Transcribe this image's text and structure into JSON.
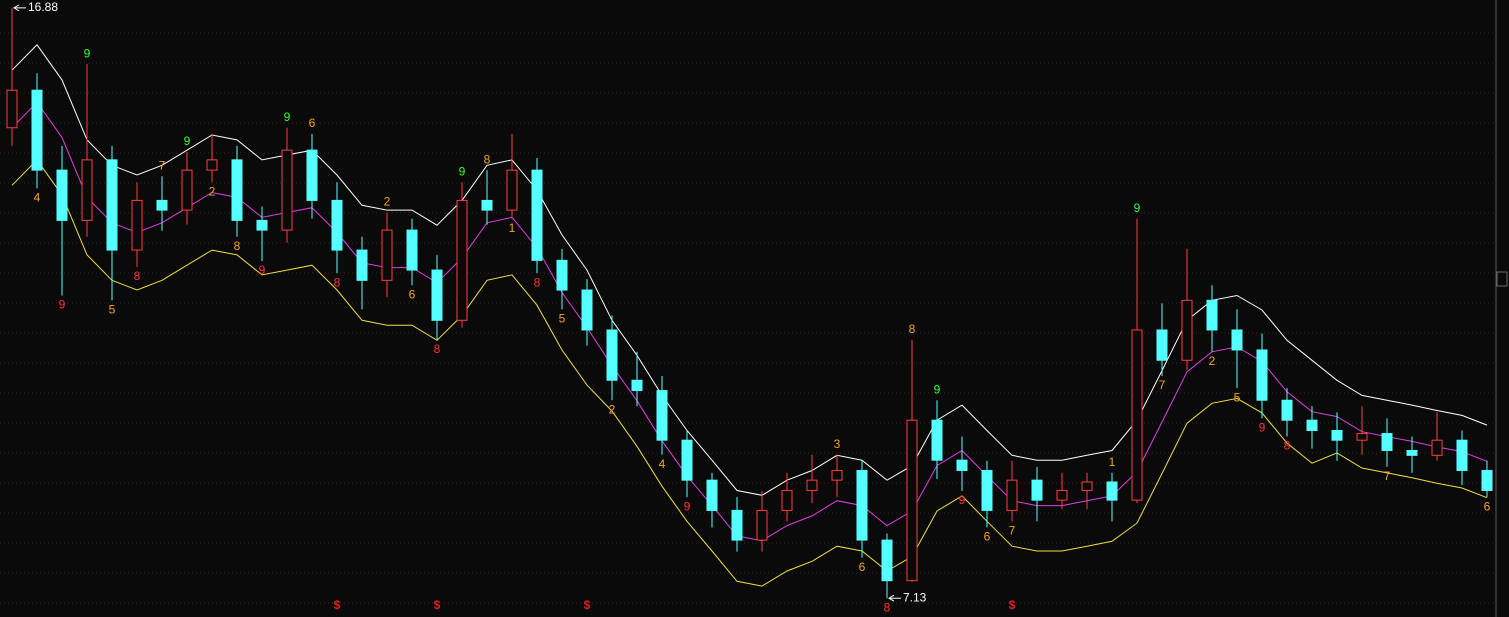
{
  "chart_data": {
    "type": "candlestick",
    "ylim": [
      6.82,
      17.01
    ],
    "up_color": "#ff3c3c",
    "down_color": "#54ffff",
    "open": [
      14.9,
      15.52,
      14.2,
      13.37,
      14.37,
      12.88,
      13.7,
      13.54,
      14.2,
      14.37,
      13.37,
      13.21,
      14.53,
      13.7,
      12.88,
      12.38,
      13.21,
      12.55,
      11.72,
      13.7,
      13.54,
      14.2,
      12.71,
      12.22,
      11.56,
      10.73,
      10.56,
      9.74,
      9.08,
      8.58,
      8.09,
      8.58,
      8.91,
      9.08,
      9.24,
      8.09,
      7.42,
      10.07,
      9.41,
      9.24,
      8.58,
      9.08,
      8.75,
      8.91,
      9.05,
      8.75,
      11.56,
      11.06,
      12.05,
      11.56,
      11.23,
      10.4,
      10.07,
      9.9,
      9.74,
      9.85,
      9.57,
      9.49,
      9.74,
      9.24
    ],
    "close": [
      15.52,
      14.2,
      13.37,
      14.37,
      12.88,
      13.7,
      13.54,
      14.2,
      14.37,
      13.37,
      13.21,
      14.53,
      13.7,
      12.88,
      12.38,
      13.21,
      12.55,
      11.72,
      13.7,
      13.54,
      14.2,
      12.71,
      12.22,
      11.56,
      10.73,
      10.56,
      9.74,
      9.08,
      8.58,
      8.09,
      8.58,
      8.91,
      9.08,
      9.24,
      8.09,
      7.42,
      10.07,
      9.41,
      9.24,
      8.58,
      9.08,
      8.75,
      8.91,
      9.05,
      8.75,
      11.56,
      11.06,
      12.05,
      11.56,
      11.23,
      10.4,
      10.07,
      9.9,
      9.74,
      9.85,
      9.57,
      9.49,
      9.74,
      9.24,
      8.91
    ],
    "high": [
      16.88,
      15.8,
      14.6,
      15.95,
      14.6,
      14.0,
      14.1,
      14.5,
      14.8,
      14.6,
      13.6,
      14.9,
      14.8,
      14.0,
      13.1,
      13.5,
      13.4,
      12.8,
      14.0,
      14.2,
      14.8,
      14.4,
      12.9,
      12.4,
      11.8,
      11.2,
      10.8,
      9.9,
      9.2,
      8.8,
      8.9,
      9.2,
      9.5,
      9.5,
      9.4,
      8.2,
      11.4,
      10.4,
      9.8,
      9.4,
      9.4,
      9.3,
      9.2,
      9.2,
      9.2,
      13.4,
      12.0,
      12.9,
      12.3,
      11.9,
      11.5,
      10.6,
      10.3,
      10.2,
      10.3,
      10.1,
      9.8,
      10.2,
      9.9,
      9.4
    ],
    "low": [
      14.6,
      13.9,
      12.13,
      13.1,
      12.05,
      12.6,
      13.2,
      13.3,
      14.0,
      13.1,
      12.7,
      13.0,
      13.4,
      12.5,
      11.9,
      12.1,
      12.3,
      11.4,
      11.6,
      13.3,
      13.4,
      12.5,
      11.9,
      11.3,
      10.4,
      10.3,
      9.5,
      8.8,
      8.3,
      7.9,
      7.9,
      8.4,
      8.7,
      8.8,
      7.8,
      7.13,
      7.4,
      9.1,
      8.9,
      8.3,
      8.4,
      8.4,
      8.6,
      8.6,
      8.4,
      8.7,
      10.8,
      10.9,
      11.2,
      10.6,
      10.1,
      9.8,
      9.6,
      9.4,
      9.5,
      9.3,
      9.2,
      9.4,
      9.0,
      8.8
    ],
    "series": [
      {
        "color": "#ffffff",
        "values": [
          15.85,
          16.27,
          15.69,
          14.7,
          14.28,
          14.12,
          14.28,
          14.53,
          14.78,
          14.7,
          14.37,
          14.45,
          14.53,
          14.12,
          13.62,
          13.54,
          13.54,
          13.29,
          13.7,
          14.28,
          14.37,
          13.87,
          13.13,
          12.55,
          11.72,
          11.14,
          10.48,
          9.9,
          9.41,
          8.91,
          8.83,
          9.08,
          9.24,
          9.49,
          9.41,
          9.08,
          9.32,
          10.07,
          10.32,
          9.9,
          9.49,
          9.41,
          9.41,
          9.49,
          9.57,
          10.07,
          10.89,
          11.72,
          12.05,
          12.13,
          11.89,
          11.39,
          11.06,
          10.73,
          10.48,
          10.4,
          10.32,
          10.23,
          10.15,
          9.99
        ]
      },
      {
        "color": "#e040e0",
        "values": [
          14.9,
          15.32,
          14.74,
          13.75,
          13.33,
          13.17,
          13.33,
          13.58,
          13.83,
          13.75,
          13.42,
          13.5,
          13.58,
          13.17,
          12.67,
          12.59,
          12.59,
          12.34,
          12.75,
          13.33,
          13.42,
          12.92,
          12.18,
          11.6,
          10.97,
          10.39,
          9.73,
          9.15,
          8.66,
          8.16,
          8.08,
          8.33,
          8.49,
          8.74,
          8.66,
          8.33,
          8.57,
          9.32,
          9.57,
          9.15,
          8.74,
          8.66,
          8.66,
          8.74,
          8.82,
          9.22,
          10.04,
          10.87,
          11.2,
          11.28,
          11.04,
          10.54,
          10.21,
          10.13,
          9.88,
          9.8,
          9.72,
          9.63,
          9.55,
          9.39
        ]
      },
      {
        "color": "#f0e040",
        "values": [
          13.95,
          14.37,
          13.79,
          12.8,
          12.38,
          12.22,
          12.38,
          12.63,
          12.88,
          12.8,
          12.47,
          12.55,
          12.63,
          12.22,
          11.72,
          11.64,
          11.64,
          11.39,
          11.8,
          12.38,
          12.47,
          11.97,
          11.23,
          10.65,
          10.22,
          9.64,
          8.98,
          8.4,
          7.91,
          7.41,
          7.33,
          7.58,
          7.74,
          7.99,
          7.91,
          7.58,
          7.82,
          8.57,
          8.82,
          8.4,
          7.99,
          7.91,
          7.91,
          7.99,
          8.07,
          8.37,
          9.19,
          10.02,
          10.35,
          10.43,
          10.19,
          9.69,
          9.36,
          9.53,
          9.28,
          9.2,
          9.12,
          9.03,
          8.95,
          8.79
        ]
      }
    ],
    "annotations": [
      {
        "bar": 1,
        "text": "4",
        "side": "low",
        "color": "#f5a623"
      },
      {
        "bar": 2,
        "text": "9",
        "side": "low",
        "color": "#ff3333"
      },
      {
        "bar": 3,
        "text": "9",
        "side": "high",
        "color": "#33ff33"
      },
      {
        "bar": 4,
        "text": "5",
        "side": "low",
        "color": "#f5a623"
      },
      {
        "bar": 5,
        "text": "8",
        "side": "low",
        "color": "#ff3333"
      },
      {
        "bar": 6,
        "text": "7",
        "side": "high",
        "color": "#f5a623"
      },
      {
        "bar": 7,
        "text": "9",
        "side": "high",
        "color": "#33ff33"
      },
      {
        "bar": 8,
        "text": "2",
        "side": "low",
        "color": "#f5a623"
      },
      {
        "bar": 9,
        "text": "8",
        "side": "low",
        "color": "#f5a623"
      },
      {
        "bar": 10,
        "text": "9",
        "side": "low",
        "color": "#ff3333"
      },
      {
        "bar": 11,
        "text": "9",
        "side": "high",
        "color": "#33ff33"
      },
      {
        "bar": 12,
        "text": "6",
        "side": "high",
        "color": "#f5a623"
      },
      {
        "bar": 13,
        "text": "8",
        "side": "low",
        "color": "#ff3333"
      },
      {
        "bar": 15,
        "text": "2",
        "side": "high",
        "color": "#f5a623"
      },
      {
        "bar": 16,
        "text": "6",
        "side": "low",
        "color": "#f5a623"
      },
      {
        "bar": 17,
        "text": "8",
        "side": "low",
        "color": "#ff3333"
      },
      {
        "bar": 18,
        "text": "9",
        "side": "high",
        "color": "#33ff33"
      },
      {
        "bar": 19,
        "text": "8",
        "side": "high",
        "color": "#f5a623"
      },
      {
        "bar": 20,
        "text": "1",
        "side": "low",
        "color": "#f5a623"
      },
      {
        "bar": 21,
        "text": "8",
        "side": "low",
        "color": "#ff3333"
      },
      {
        "bar": 22,
        "text": "5",
        "side": "low",
        "color": "#f5a623"
      },
      {
        "bar": 24,
        "text": "2",
        "side": "low",
        "color": "#f5a623"
      },
      {
        "bar": 26,
        "text": "4",
        "side": "low",
        "color": "#f5a623"
      },
      {
        "bar": 27,
        "text": "9",
        "side": "low",
        "color": "#ff3333"
      },
      {
        "bar": 33,
        "text": "3",
        "side": "high",
        "color": "#f5a623"
      },
      {
        "bar": 34,
        "text": "6",
        "side": "low",
        "color": "#f5a623"
      },
      {
        "bar": 35,
        "text": "8",
        "side": "low",
        "color": "#ff3333"
      },
      {
        "bar": 36,
        "text": "8",
        "side": "high",
        "color": "#f5a623"
      },
      {
        "bar": 37,
        "text": "9",
        "side": "high",
        "color": "#33ff33"
      },
      {
        "bar": 38,
        "text": "9",
        "side": "low",
        "color": "#ff3333"
      },
      {
        "bar": 39,
        "text": "6",
        "side": "low",
        "color": "#f5a623"
      },
      {
        "bar": 40,
        "text": "7",
        "side": "low",
        "color": "#f5a623"
      },
      {
        "bar": 44,
        "text": "1",
        "side": "high",
        "color": "#f5a623"
      },
      {
        "bar": 45,
        "text": "9",
        "side": "high",
        "color": "#33ff33"
      },
      {
        "bar": 46,
        "text": "7",
        "side": "low",
        "color": "#f5a623"
      },
      {
        "bar": 48,
        "text": "2",
        "side": "low",
        "color": "#f5a623"
      },
      {
        "bar": 49,
        "text": "5",
        "side": "low",
        "color": "#f5a623"
      },
      {
        "bar": 50,
        "text": "9",
        "side": "low",
        "color": "#ff3333"
      },
      {
        "bar": 51,
        "text": "8",
        "side": "low",
        "color": "#ff3333"
      },
      {
        "bar": 55,
        "text": "7",
        "side": "low",
        "color": "#f5a623"
      },
      {
        "bar": 59,
        "text": "6",
        "side": "low",
        "color": "#f5a623"
      }
    ],
    "signals": [
      {
        "bar": 13,
        "text": "$"
      },
      {
        "bar": 17,
        "text": "$"
      },
      {
        "bar": 23,
        "text": "$"
      },
      {
        "bar": 40,
        "text": "$"
      }
    ],
    "signal_color": "#e02020",
    "extreme_markers": [
      {
        "bar": 0,
        "kind": "high"
      },
      {
        "bar": 35,
        "kind": "low"
      }
    ]
  }
}
